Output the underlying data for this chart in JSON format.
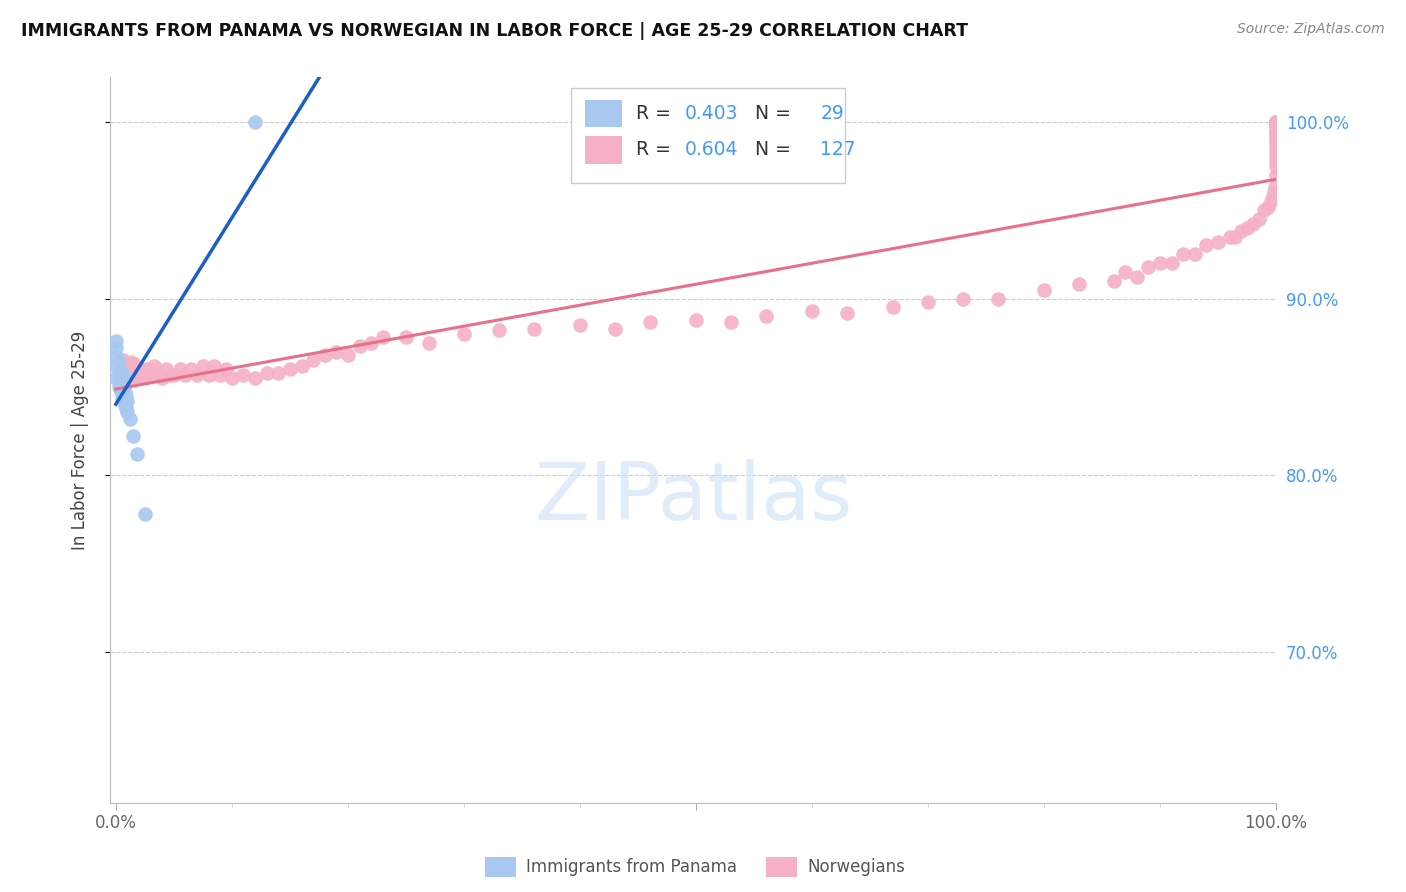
{
  "title": "IMMIGRANTS FROM PANAMA VS NORWEGIAN IN LABOR FORCE | AGE 25-29 CORRELATION CHART",
  "source": "Source: ZipAtlas.com",
  "ylabel": "In Labor Force | Age 25-29",
  "xlim": [
    -0.005,
    1.0
  ],
  "ylim": [
    0.615,
    1.025
  ],
  "y_ticks": [
    0.7,
    0.8,
    0.9,
    1.0
  ],
  "y_tick_labels": [
    "70.0%",
    "80.0%",
    "90.0%",
    "100.0%"
  ],
  "x_ticks": [
    0.0,
    0.5,
    1.0
  ],
  "x_tick_labels": [
    "0.0%",
    "",
    "100.0%"
  ],
  "legend_R_blue": "0.403",
  "legend_N_blue": "29",
  "legend_R_pink": "0.604",
  "legend_N_pink": "127",
  "blue_scatter_color": "#a8c8f0",
  "pink_scatter_color": "#f5b0c5",
  "blue_line_color": "#1a5fc8",
  "pink_line_color": "#e8708a",
  "legend_text_color": "#333333",
  "legend_value_color": "#4499ff",
  "watermark_color": "#cce0f5",
  "panama_x": [
    0.0,
    0.0,
    0.0,
    0.0,
    0.0,
    0.003,
    0.003,
    0.003,
    0.004,
    0.004,
    0.005,
    0.005,
    0.005,
    0.006,
    0.006,
    0.007,
    0.007,
    0.007,
    0.008,
    0.008,
    0.009,
    0.009,
    0.01,
    0.01,
    0.012,
    0.015,
    0.018,
    0.025,
    0.12
  ],
  "panama_y": [
    0.855,
    0.862,
    0.867,
    0.872,
    0.876,
    0.85,
    0.858,
    0.864,
    0.847,
    0.854,
    0.843,
    0.85,
    0.858,
    0.845,
    0.852,
    0.843,
    0.85,
    0.856,
    0.84,
    0.847,
    0.838,
    0.845,
    0.836,
    0.842,
    0.832,
    0.822,
    0.812,
    0.778,
    1.0
  ],
  "norwegian_x": [
    0.005,
    0.006,
    0.007,
    0.008,
    0.008,
    0.009,
    0.01,
    0.01,
    0.011,
    0.012,
    0.013,
    0.013,
    0.014,
    0.015,
    0.016,
    0.017,
    0.018,
    0.019,
    0.02,
    0.022,
    0.025,
    0.027,
    0.03,
    0.033,
    0.036,
    0.04,
    0.043,
    0.047,
    0.05,
    0.055,
    0.06,
    0.065,
    0.07,
    0.075,
    0.08,
    0.085,
    0.09,
    0.095,
    0.1,
    0.11,
    0.12,
    0.13,
    0.14,
    0.15,
    0.16,
    0.17,
    0.18,
    0.19,
    0.2,
    0.21,
    0.22,
    0.23,
    0.25,
    0.27,
    0.3,
    0.33,
    0.36,
    0.4,
    0.43,
    0.46,
    0.5,
    0.53,
    0.56,
    0.6,
    0.63,
    0.67,
    0.7,
    0.73,
    0.76,
    0.8,
    0.83,
    0.86,
    0.87,
    0.88,
    0.89,
    0.9,
    0.91,
    0.92,
    0.93,
    0.94,
    0.95,
    0.96,
    0.965,
    0.97,
    0.975,
    0.98,
    0.985,
    0.99,
    0.993,
    0.996,
    0.997,
    0.998,
    0.999,
    1.0,
    1.0,
    1.0,
    1.0,
    1.0,
    1.0,
    1.0,
    1.0,
    1.0,
    1.0,
    1.0,
    1.0,
    1.0,
    1.0,
    1.0,
    1.0,
    1.0,
    1.0,
    1.0,
    1.0,
    1.0,
    1.0,
    1.0,
    1.0,
    1.0,
    1.0,
    1.0,
    1.0,
    1.0,
    1.0
  ],
  "norwegian_y": [
    0.86,
    0.865,
    0.862,
    0.858,
    0.863,
    0.86,
    0.856,
    0.862,
    0.858,
    0.855,
    0.86,
    0.864,
    0.857,
    0.86,
    0.863,
    0.857,
    0.855,
    0.86,
    0.856,
    0.86,
    0.856,
    0.86,
    0.857,
    0.862,
    0.858,
    0.855,
    0.86,
    0.857,
    0.857,
    0.86,
    0.857,
    0.86,
    0.857,
    0.862,
    0.857,
    0.862,
    0.857,
    0.86,
    0.855,
    0.857,
    0.855,
    0.858,
    0.858,
    0.86,
    0.862,
    0.865,
    0.868,
    0.87,
    0.868,
    0.873,
    0.875,
    0.878,
    0.878,
    0.875,
    0.88,
    0.882,
    0.883,
    0.885,
    0.883,
    0.887,
    0.888,
    0.887,
    0.89,
    0.893,
    0.892,
    0.895,
    0.898,
    0.9,
    0.9,
    0.905,
    0.908,
    0.91,
    0.915,
    0.912,
    0.918,
    0.92,
    0.92,
    0.925,
    0.925,
    0.93,
    0.932,
    0.935,
    0.935,
    0.938,
    0.94,
    0.942,
    0.945,
    0.95,
    0.952,
    0.955,
    0.958,
    0.96,
    0.963,
    0.97,
    0.975,
    0.978,
    0.98,
    0.983,
    0.985,
    0.988,
    0.99,
    0.992,
    0.993,
    0.995,
    0.995,
    0.998,
    0.998,
    1.0,
    1.0,
    1.0,
    1.0,
    1.0,
    1.0,
    1.0,
    1.0,
    1.0,
    1.0,
    1.0,
    1.0,
    1.0,
    1.0,
    1.0,
    1.0
  ]
}
